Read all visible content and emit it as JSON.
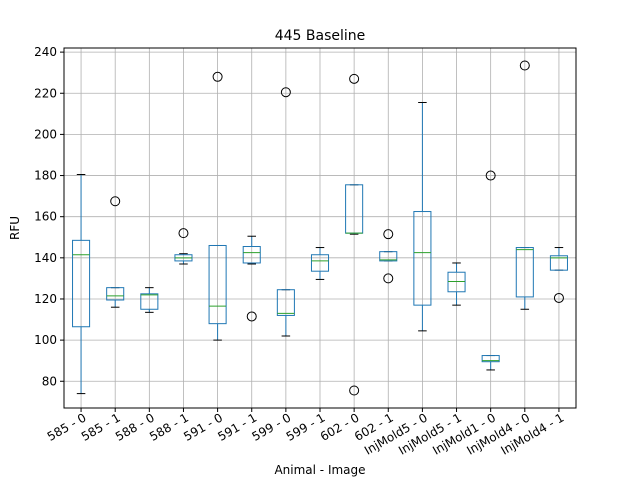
{
  "chart_data": {
    "type": "box",
    "title": "445 Baseline",
    "xlabel": "Animal - Image",
    "ylabel": "RFU",
    "ylim": [
      67,
      242
    ],
    "yticks": [
      80,
      100,
      120,
      140,
      160,
      180,
      200,
      220,
      240
    ],
    "grid": true,
    "colors": {
      "box": "#1f77b4",
      "median": "#2ca02c",
      "grid": "#b0b0b0",
      "outlier": "#000000",
      "axis": "#000000"
    },
    "categories": [
      "585 - 0",
      "585 - 1",
      "588 - 0",
      "588 - 1",
      "591 - 0",
      "591 - 1",
      "599 - 0",
      "599 - 1",
      "602 - 0",
      "602 - 1",
      "InjMold5 - 0",
      "InjMold5 - 1",
      "InjMold1 - 0",
      "InjMold4 - 0",
      "InjMold4 - 1"
    ],
    "boxes": [
      {
        "whisker_low": 74,
        "q1": 106.5,
        "median": 141.5,
        "q3": 148.5,
        "whisker_high": 180.5,
        "outliers": []
      },
      {
        "whisker_low": 116,
        "q1": 119.5,
        "median": 121.5,
        "q3": 125.5,
        "whisker_high": 125.5,
        "outliers": [
          167.5
        ]
      },
      {
        "whisker_low": 113.5,
        "q1": 115,
        "median": 122,
        "q3": 122.5,
        "whisker_high": 125.5,
        "outliers": []
      },
      {
        "whisker_low": 137,
        "q1": 138.5,
        "median": 140,
        "q3": 141.5,
        "whisker_high": 142,
        "outliers": [
          152
        ]
      },
      {
        "whisker_low": 100,
        "q1": 108,
        "median": 116.5,
        "q3": 146,
        "whisker_high": 146,
        "outliers": [
          228
        ]
      },
      {
        "whisker_low": 137,
        "q1": 137.5,
        "median": 142.5,
        "q3": 145.5,
        "whisker_high": 150.5,
        "outliers": [
          111.5
        ]
      },
      {
        "whisker_low": 102,
        "q1": 112,
        "median": 113,
        "q3": 124.5,
        "whisker_high": 124.5,
        "outliers": [
          220.5
        ]
      },
      {
        "whisker_low": 129.5,
        "q1": 133.5,
        "median": 138.5,
        "q3": 141.5,
        "whisker_high": 145,
        "outliers": []
      },
      {
        "whisker_low": 151.5,
        "q1": 152,
        "median": 152,
        "q3": 175.5,
        "whisker_high": 175.5,
        "outliers": [
          227,
          75.5
        ]
      },
      {
        "whisker_low": 138.5,
        "q1": 138.5,
        "median": 139,
        "q3": 143,
        "whisker_high": 143,
        "outliers": [
          151.5,
          130
        ]
      },
      {
        "whisker_low": 104.5,
        "q1": 117,
        "median": 142.5,
        "q3": 162.5,
        "whisker_high": 215.5,
        "outliers": []
      },
      {
        "whisker_low": 117,
        "q1": 123.5,
        "median": 128.5,
        "q3": 133,
        "whisker_high": 137.5,
        "outliers": []
      },
      {
        "whisker_low": 85.5,
        "q1": 89.5,
        "median": 90,
        "q3": 92.5,
        "whisker_high": 92.5,
        "outliers": [
          180
        ]
      },
      {
        "whisker_low": 115,
        "q1": 121,
        "median": 144,
        "q3": 145,
        "whisker_high": 145,
        "outliers": [
          233.5
        ]
      },
      {
        "whisker_low": 134,
        "q1": 134,
        "median": 140,
        "q3": 141,
        "whisker_high": 145,
        "outliers": [
          120.5
        ]
      }
    ]
  }
}
